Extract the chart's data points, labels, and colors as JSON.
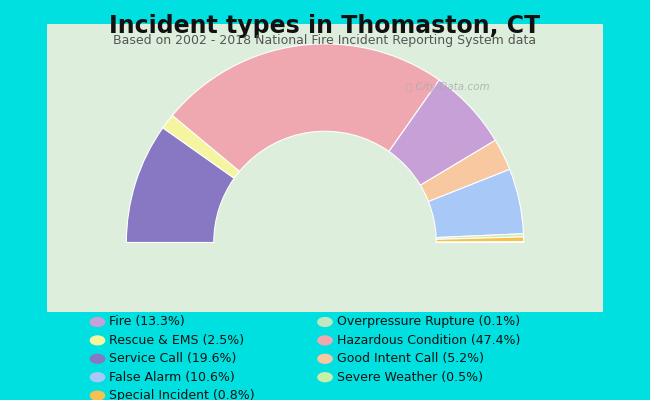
{
  "title": "Incident types in Thomaston, CT",
  "subtitle": "Based on 2002 - 2018 National Fire Incident Reporting System data",
  "background_color": "#00e0e0",
  "chart_bg_color": "#ddeedd",
  "title_fontsize": 17,
  "subtitle_fontsize": 9,
  "legend_fontsize": 9,
  "segment_order": [
    [
      "Service Call",
      19.6,
      "#8878c3"
    ],
    [
      "Rescue & EMS",
      2.5,
      "#f5f5a0"
    ],
    [
      "Hazardous Condition",
      47.4,
      "#f0a8b0"
    ],
    [
      "Fire",
      13.3,
      "#c8a0d8"
    ],
    [
      "Good Intent Call",
      5.2,
      "#f8c8a0"
    ],
    [
      "False Alarm",
      10.6,
      "#a8c8f8"
    ],
    [
      "Severe Weather",
      0.5,
      "#c8f0a8"
    ],
    [
      "Special Incident",
      0.8,
      "#f8c050"
    ],
    [
      "Overpressure Rupture",
      0.1,
      "#c0e8c0"
    ]
  ],
  "legend_left": [
    [
      "Fire (13.3%)",
      "#c8a0d8"
    ],
    [
      "Rescue & EMS (2.5%)",
      "#f5f5a0"
    ],
    [
      "Service Call (19.6%)",
      "#8878c3"
    ],
    [
      "False Alarm (10.6%)",
      "#a8c8f8"
    ],
    [
      "Special Incident (0.8%)",
      "#f8c050"
    ]
  ],
  "legend_right": [
    [
      "Overpressure Rupture (0.1%)",
      "#c0e8c0"
    ],
    [
      "Hazardous Condition (47.4%)",
      "#f0a8b0"
    ],
    [
      "Good Intent Call (5.2%)",
      "#f8c8a0"
    ],
    [
      "Severe Weather (0.5%)",
      "#c8f0a8"
    ]
  ]
}
